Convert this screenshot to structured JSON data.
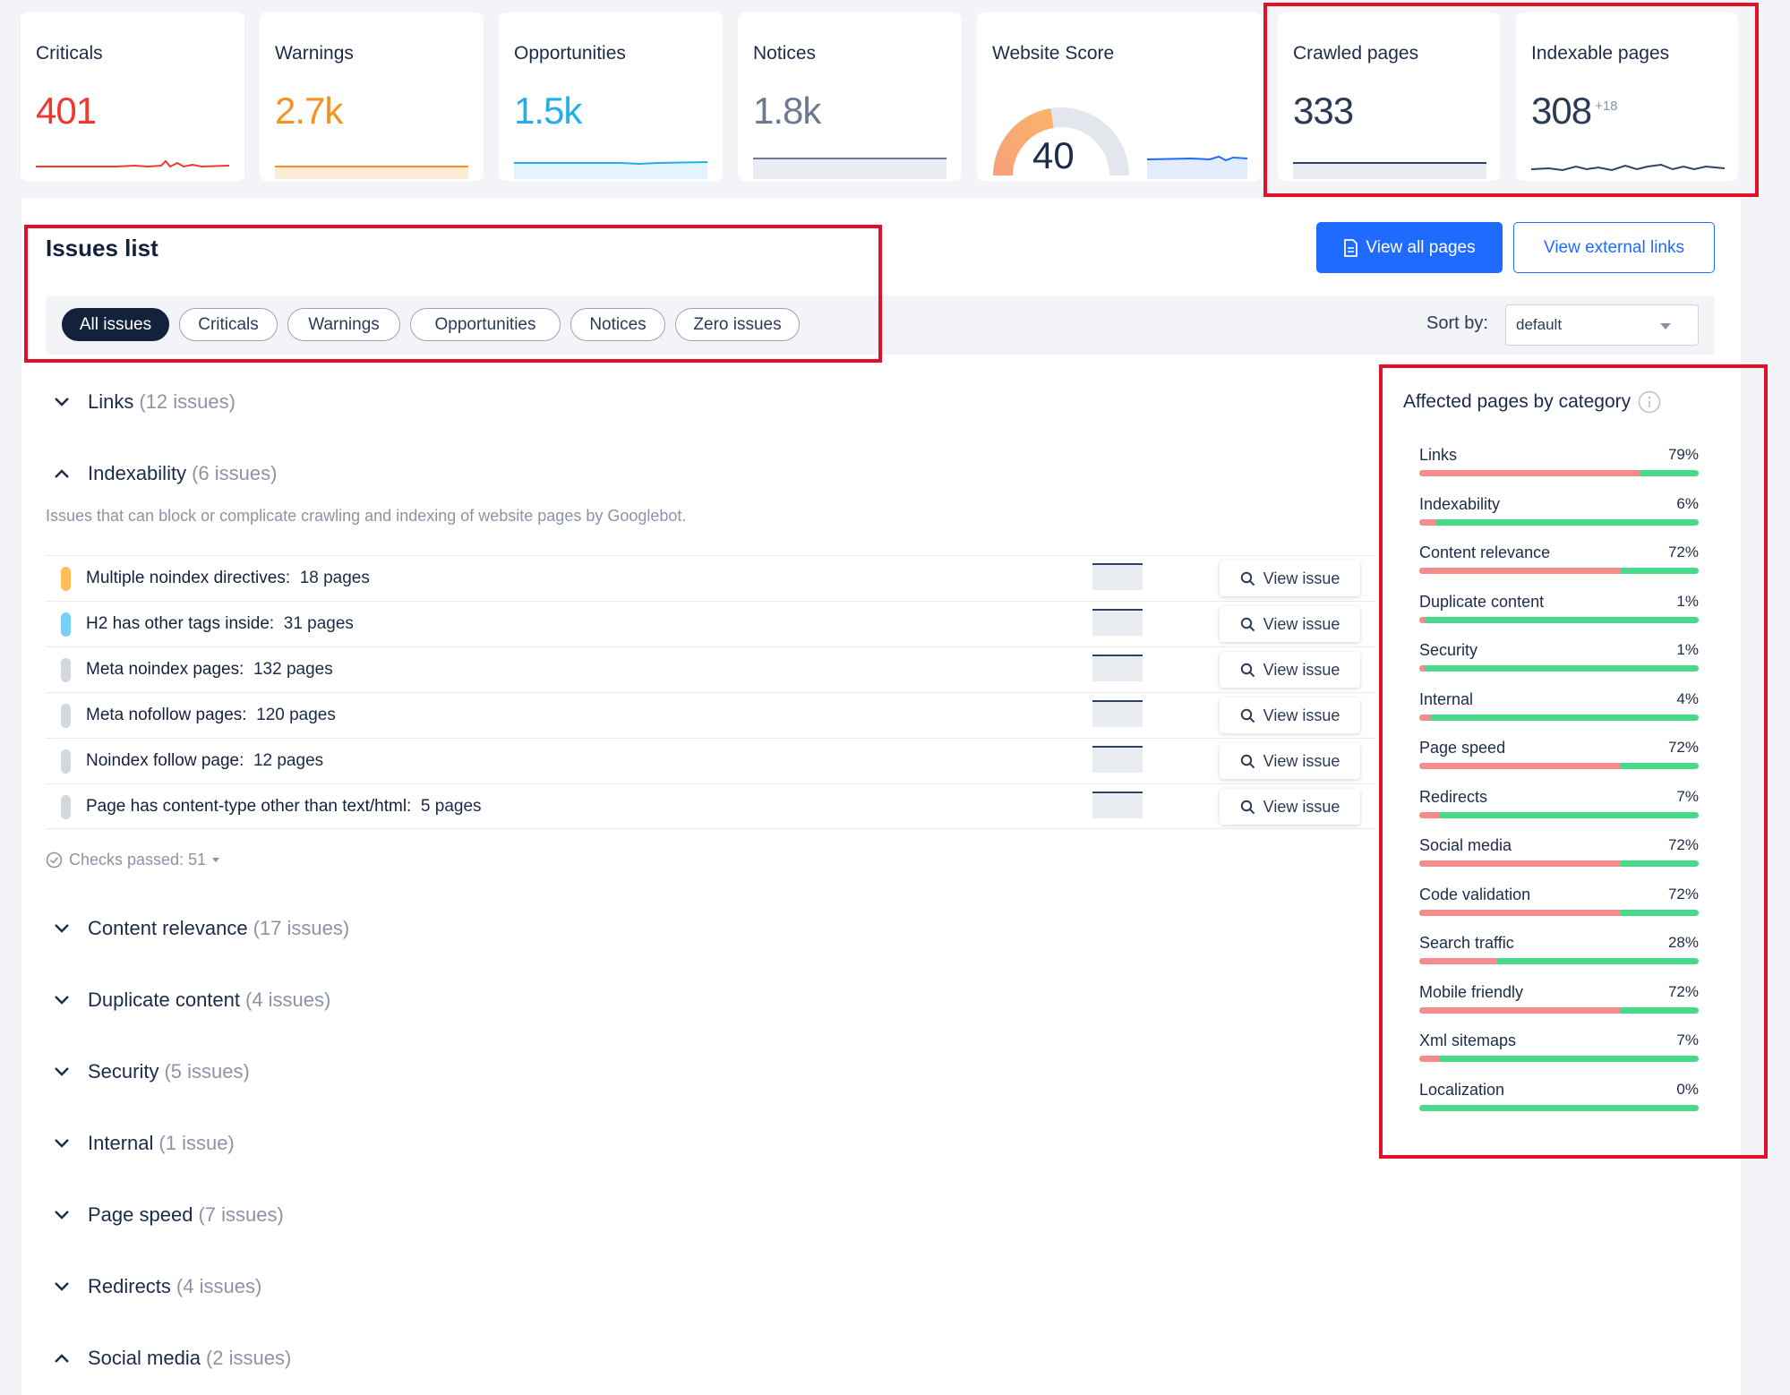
{
  "metrics": [
    {
      "title": "Criticals",
      "value": "401",
      "color": "#f0382f"
    },
    {
      "title": "Warnings",
      "value": "2.7k",
      "color": "#f39323"
    },
    {
      "title": "Opportunities",
      "value": "1.5k",
      "color": "#23aee8"
    },
    {
      "title": "Notices",
      "value": "1.8k",
      "color": "#6c7a91"
    },
    {
      "title": "Website Score",
      "value": "40"
    },
    {
      "title": "Crawled pages",
      "value": "333"
    },
    {
      "title": "Indexable pages",
      "value": "308",
      "delta": "+18"
    }
  ],
  "issues_list": {
    "title": "Issues list",
    "view_all_pages": "View all pages",
    "view_external_links": "View external links",
    "filters": [
      "All issues",
      "Criticals",
      "Warnings",
      "Opportunities",
      "Notices",
      "Zero issues"
    ],
    "active_filter": "All issues",
    "sort_label": "Sort by:",
    "sort_value": "default"
  },
  "categories_top": [
    {
      "name": "Links",
      "count": "(12 issues)",
      "expanded": false
    },
    {
      "name": "Indexability",
      "count": "(6 issues)",
      "expanded": true
    }
  ],
  "indexability": {
    "description": "Issues that can block or complicate crawling and indexing of website pages by Googlebot.",
    "issues": [
      {
        "name": "Multiple noindex directives:",
        "pages": "18 pages",
        "color": "#ffbe5c"
      },
      {
        "name": "H2 has other tags inside:",
        "pages": "31 pages",
        "color": "#79d0f7"
      },
      {
        "name": "Meta noindex pages:",
        "pages": "132 pages",
        "color": "#d3d7de"
      },
      {
        "name": "Meta nofollow pages:",
        "pages": "120 pages",
        "color": "#d3d7de"
      },
      {
        "name": "Noindex follow page:",
        "pages": "12 pages",
        "color": "#d3d7de"
      },
      {
        "name": "Page has content-type other than text/html:",
        "pages": "5 pages",
        "color": "#d3d7de"
      }
    ],
    "view_issue_label": "View issue",
    "checks_passed": "Checks passed: 51"
  },
  "categories_bottom": [
    {
      "name": "Content relevance",
      "count": "(17 issues)",
      "expanded": false
    },
    {
      "name": "Duplicate content",
      "count": "(4 issues)",
      "expanded": false
    },
    {
      "name": "Security",
      "count": "(5 issues)",
      "expanded": false
    },
    {
      "name": "Internal",
      "count": "(1 issue)",
      "expanded": false
    },
    {
      "name": "Page speed",
      "count": "(7 issues)",
      "expanded": false
    },
    {
      "name": "Redirects",
      "count": "(4 issues)",
      "expanded": false
    },
    {
      "name": "Social media",
      "count": "(2 issues)",
      "expanded": true
    }
  ],
  "affected": {
    "title": "Affected pages by category",
    "rows": [
      {
        "name": "Links",
        "pct": "79%",
        "value": 79
      },
      {
        "name": "Indexability",
        "pct": "6%",
        "value": 6
      },
      {
        "name": "Content relevance",
        "pct": "72%",
        "value": 72
      },
      {
        "name": "Duplicate content",
        "pct": "1%",
        "value": 1
      },
      {
        "name": "Security",
        "pct": "1%",
        "value": 1
      },
      {
        "name": "Internal",
        "pct": "4%",
        "value": 4
      },
      {
        "name": "Page speed",
        "pct": "72%",
        "value": 72
      },
      {
        "name": "Redirects",
        "pct": "7%",
        "value": 7
      },
      {
        "name": "Social media",
        "pct": "72%",
        "value": 72
      },
      {
        "name": "Code validation",
        "pct": "72%",
        "value": 72
      },
      {
        "name": "Search traffic",
        "pct": "28%",
        "value": 28
      },
      {
        "name": "Mobile friendly",
        "pct": "72%",
        "value": 72
      },
      {
        "name": "Xml sitemaps",
        "pct": "7%",
        "value": 7
      },
      {
        "name": "Localization",
        "pct": "0%",
        "value": 0
      }
    ]
  }
}
